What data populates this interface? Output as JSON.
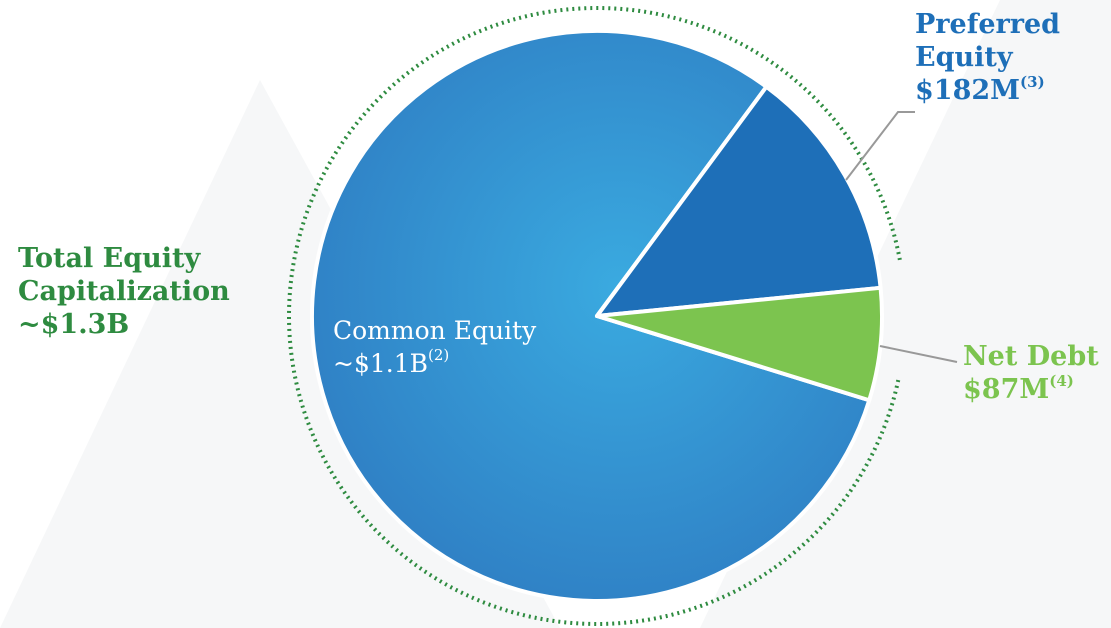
{
  "chart_data": {
    "type": "pie",
    "series": [
      {
        "name": "Common Equity",
        "color": "#3a9ad8",
        "value": 1100,
        "value_label": "~$1.1B",
        "footnote": "(2)"
      },
      {
        "name": "Preferred Equity",
        "color": "#1e6fb8",
        "value": 182,
        "value_label": "$182M",
        "footnote": "(3)"
      },
      {
        "name": "Net Debt",
        "color": "#7cc44f",
        "value": 87,
        "value_label": "$87M",
        "footnote": "(4)"
      }
    ],
    "annotation": {
      "text": "Total Equity Capitalization",
      "value_label": "~$1.3B",
      "color": "#2e8b40"
    }
  }
}
